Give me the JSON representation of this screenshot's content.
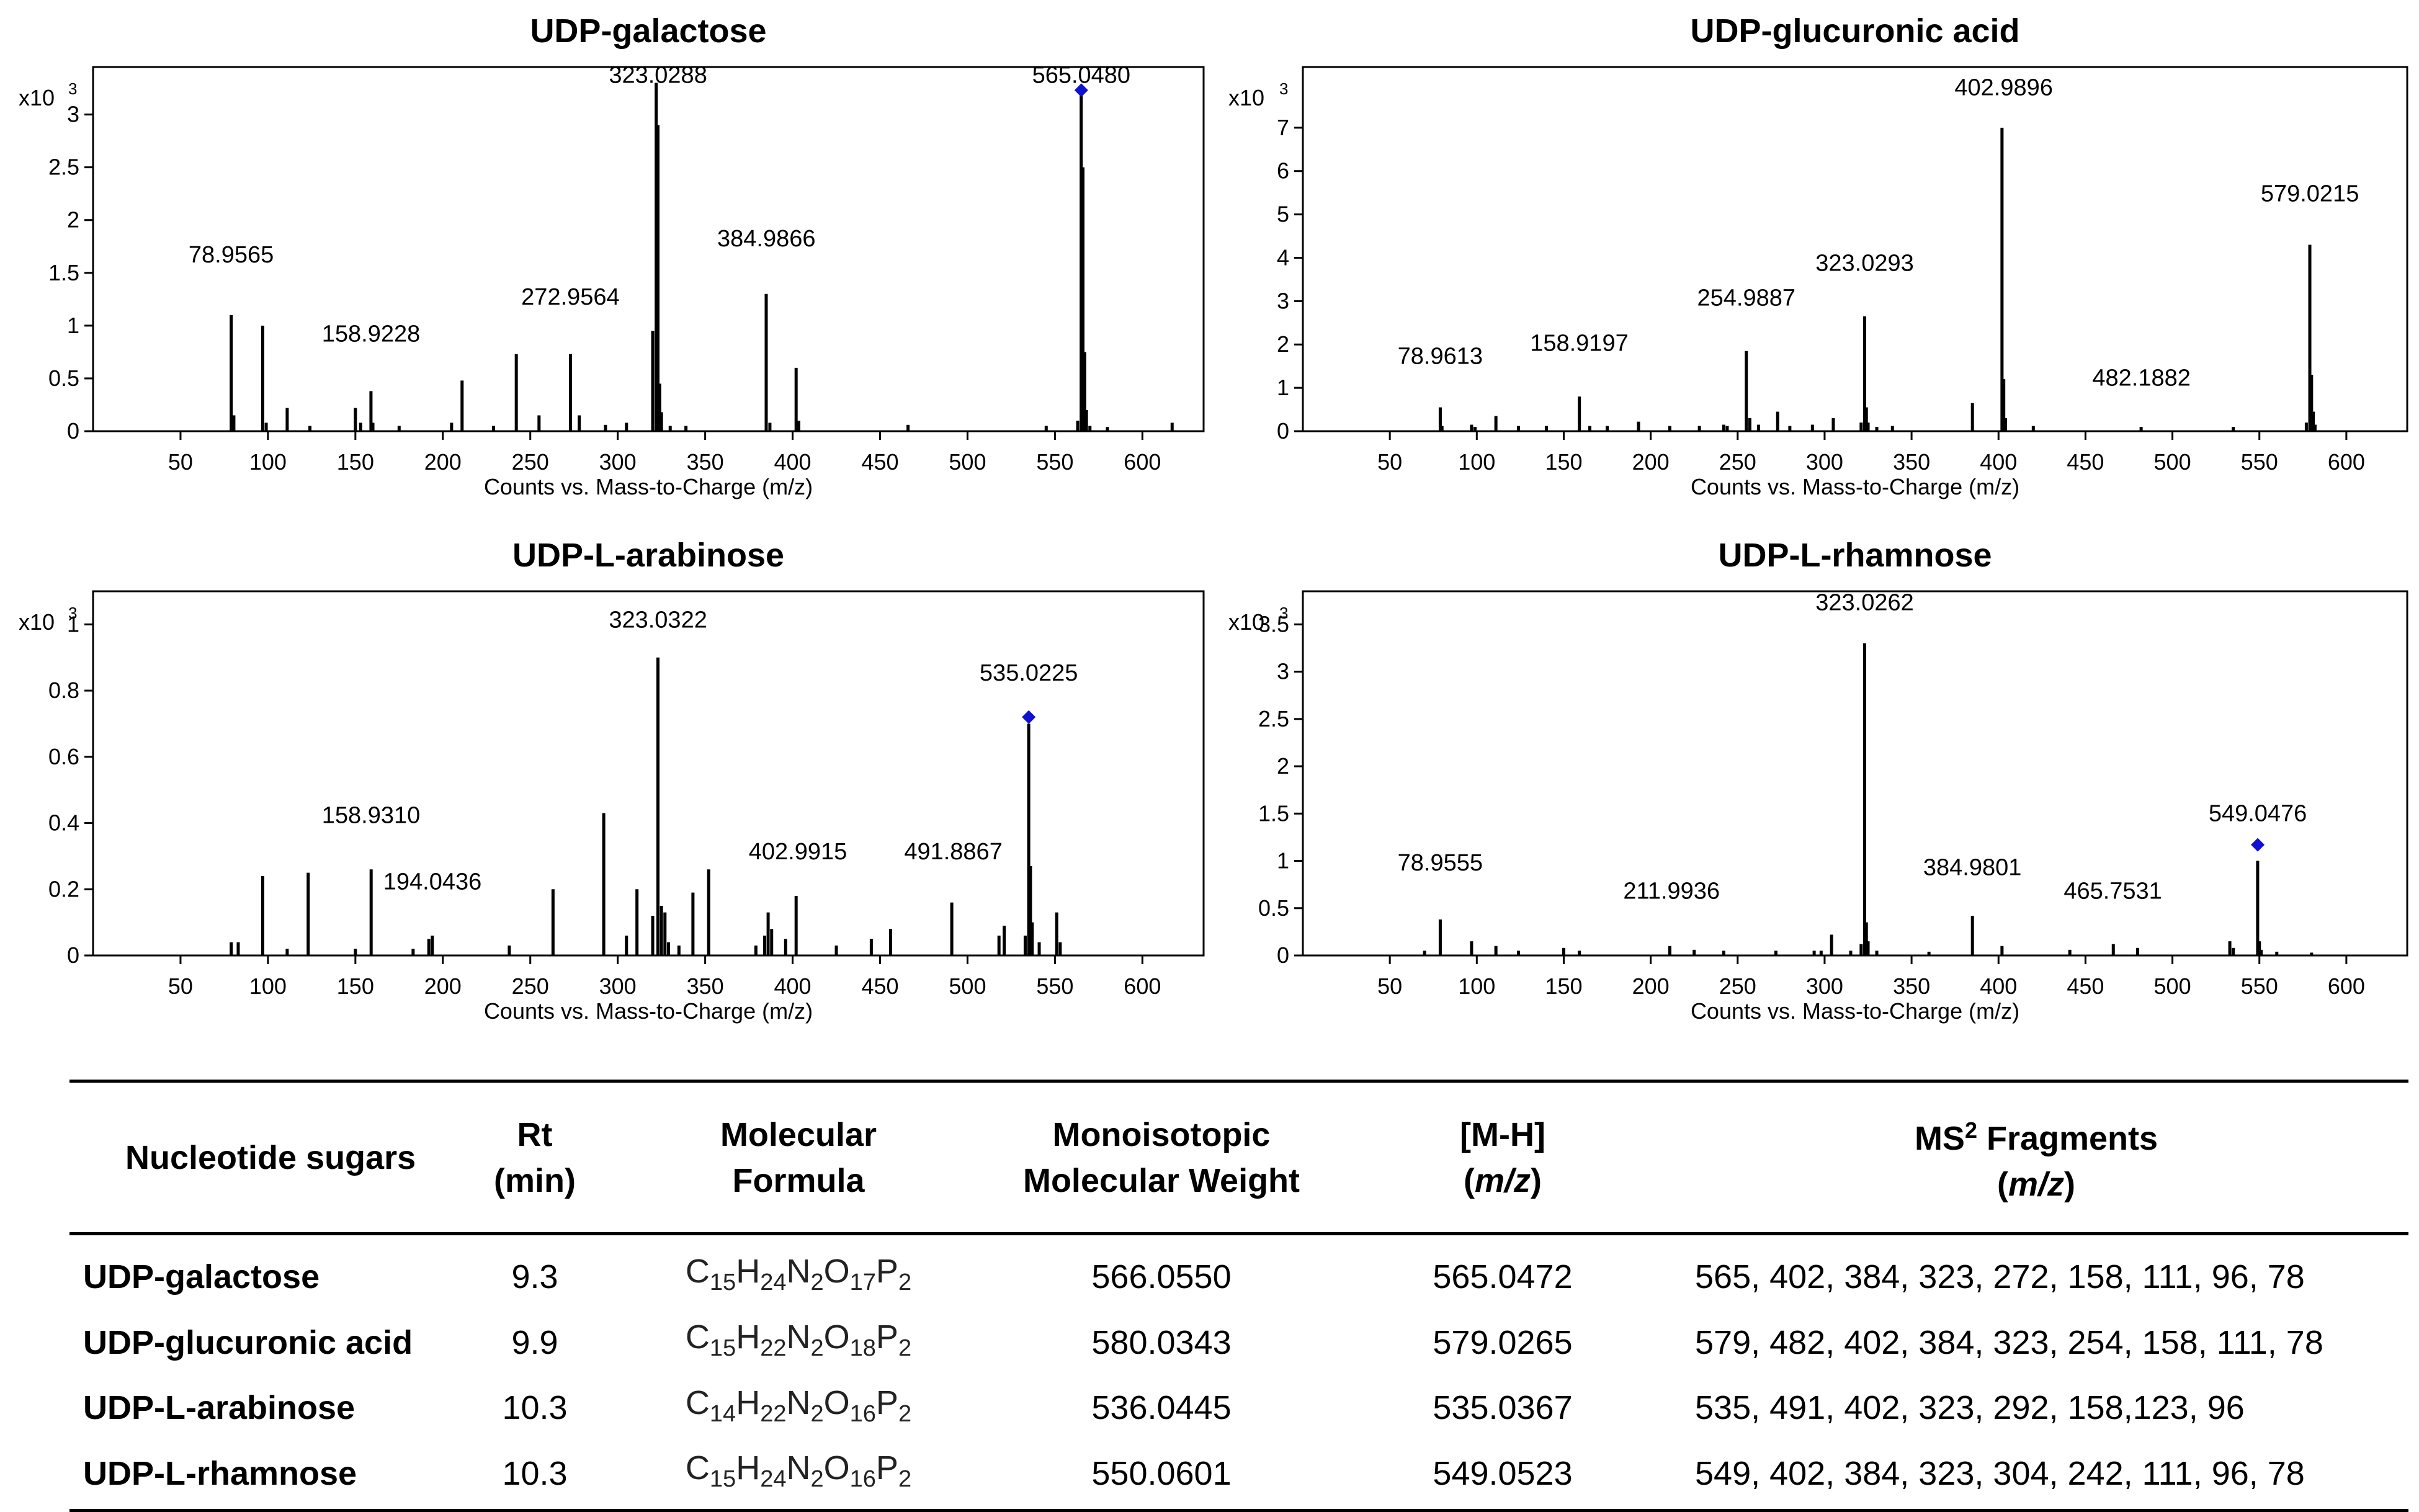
{
  "charts": [
    {
      "type": "bar",
      "title": "UDP-galactose",
      "xlabel": "Counts vs. Mass-to-Charge (m/z)",
      "ylabel_multiplier": "x10",
      "ylabel_exponent": "3",
      "xlim": [
        0,
        635
      ],
      "ylim": [
        0,
        3.45
      ],
      "xticks": [
        50,
        100,
        150,
        200,
        250,
        300,
        350,
        400,
        450,
        500,
        550,
        600
      ],
      "yticks": [
        0,
        0.5,
        1,
        1.5,
        2,
        2.5,
        3
      ],
      "peaks": [
        [
          79.0,
          1.1
        ],
        [
          80.5,
          0.15
        ],
        [
          97.0,
          1.0
        ],
        [
          99.0,
          0.08
        ],
        [
          111.0,
          0.22
        ],
        [
          124.0,
          0.05
        ],
        [
          150.0,
          0.22
        ],
        [
          153.0,
          0.08
        ],
        [
          158.9,
          0.38
        ],
        [
          160.0,
          0.08
        ],
        [
          175.0,
          0.05
        ],
        [
          205.0,
          0.08
        ],
        [
          211.0,
          0.48
        ],
        [
          229.0,
          0.05
        ],
        [
          242.0,
          0.73
        ],
        [
          255.0,
          0.15
        ],
        [
          273.0,
          0.73
        ],
        [
          278.0,
          0.15
        ],
        [
          293.0,
          0.06
        ],
        [
          305.0,
          0.08
        ],
        [
          320.0,
          0.95
        ],
        [
          322.0,
          3.3
        ],
        [
          323.0,
          2.9
        ],
        [
          324.0,
          0.45
        ],
        [
          325.0,
          0.18
        ],
        [
          330.0,
          0.05
        ],
        [
          339.0,
          0.05
        ],
        [
          384.9,
          1.3
        ],
        [
          387.0,
          0.08
        ],
        [
          402.0,
          0.6
        ],
        [
          403.5,
          0.1
        ],
        [
          466.0,
          0.06
        ],
        [
          545.0,
          0.05
        ],
        [
          563.0,
          0.1
        ],
        [
          565.0,
          3.2
        ],
        [
          566.0,
          2.5
        ],
        [
          567.0,
          0.75
        ],
        [
          568.0,
          0.2
        ],
        [
          570.0,
          0.05
        ],
        [
          580.0,
          0.04
        ],
        [
          617.0,
          0.08
        ]
      ],
      "labels": [
        {
          "x": 78.9565,
          "text": "78.9565",
          "y": 1.6
        },
        {
          "x": 158.9228,
          "text": "158.9228",
          "y": 0.85
        },
        {
          "x": 272.9564,
          "text": "272.9564",
          "y": 1.2
        },
        {
          "x": 323.0288,
          "text": "323.0288",
          "y": 3.3
        },
        {
          "x": 384.9866,
          "text": "384.9866",
          "y": 1.75
        },
        {
          "x": 565.048,
          "text": "565.0480",
          "y": 3.3
        }
      ],
      "marker": {
        "x": 565.048,
        "y": 3.23
      }
    },
    {
      "type": "bar",
      "title": "UDP-glucuronic acid",
      "xlabel": "Counts vs. Mass-to-Charge (m/z)",
      "ylabel_multiplier": "x10",
      "ylabel_exponent": "3",
      "xlim": [
        0,
        635
      ],
      "ylim": [
        0,
        8.4
      ],
      "xticks": [
        50,
        100,
        150,
        200,
        250,
        300,
        350,
        400,
        450,
        500,
        550,
        600
      ],
      "yticks": [
        0,
        1,
        2,
        3,
        4,
        5,
        6,
        7
      ],
      "peaks": [
        [
          79.0,
          0.55
        ],
        [
          80.0,
          0.12
        ],
        [
          97.0,
          0.15
        ],
        [
          99.0,
          0.1
        ],
        [
          111.0,
          0.35
        ],
        [
          124.0,
          0.12
        ],
        [
          140.0,
          0.12
        ],
        [
          159.0,
          0.8
        ],
        [
          165.0,
          0.12
        ],
        [
          175.0,
          0.12
        ],
        [
          193.0,
          0.22
        ],
        [
          211.0,
          0.12
        ],
        [
          228.0,
          0.12
        ],
        [
          242.0,
          0.15
        ],
        [
          244.0,
          0.12
        ],
        [
          255.0,
          1.85
        ],
        [
          257.0,
          0.3
        ],
        [
          262.0,
          0.15
        ],
        [
          273.0,
          0.45
        ],
        [
          280.0,
          0.12
        ],
        [
          293.0,
          0.15
        ],
        [
          305.0,
          0.3
        ],
        [
          321.0,
          0.2
        ],
        [
          323.0,
          2.65
        ],
        [
          324.0,
          0.55
        ],
        [
          325.0,
          0.2
        ],
        [
          330.0,
          0.1
        ],
        [
          339.0,
          0.12
        ],
        [
          385.0,
          0.65
        ],
        [
          402.0,
          7.0
        ],
        [
          403.0,
          1.2
        ],
        [
          404.0,
          0.3
        ],
        [
          420.0,
          0.12
        ],
        [
          482.0,
          0.1
        ],
        [
          535.0,
          0.1
        ],
        [
          577.0,
          0.2
        ],
        [
          579.0,
          4.3
        ],
        [
          580.0,
          1.3
        ],
        [
          581.0,
          0.45
        ],
        [
          582.0,
          0.15
        ]
      ],
      "labels": [
        {
          "x": 78.9613,
          "text": "78.9613",
          "y": 1.55
        },
        {
          "x": 158.9197,
          "text": "158.9197",
          "y": 1.85
        },
        {
          "x": 254.9887,
          "text": "254.9887",
          "y": 2.9
        },
        {
          "x": 323.0293,
          "text": "323.0293",
          "y": 3.7
        },
        {
          "x": 402.9896,
          "text": "402.9896",
          "y": 7.75
        },
        {
          "x": 482.1882,
          "text": "482.1882",
          "y": 1.05
        },
        {
          "x": 579.0215,
          "text": "579.0215",
          "y": 5.3
        }
      ],
      "marker": null
    },
    {
      "type": "bar",
      "title": "UDP-L-arabinose",
      "xlabel": "Counts vs. Mass-to-Charge (m/z)",
      "ylabel_multiplier": "x10",
      "ylabel_exponent": "3",
      "xlim": [
        0,
        635
      ],
      "ylim": [
        0,
        1.1
      ],
      "xticks": [
        50,
        100,
        150,
        200,
        250,
        300,
        350,
        400,
        450,
        500,
        550,
        600
      ],
      "yticks": [
        0,
        0.2,
        0.4,
        0.6,
        0.8,
        1
      ],
      "peaks": [
        [
          79.0,
          0.04
        ],
        [
          83.0,
          0.04
        ],
        [
          97.0,
          0.24
        ],
        [
          111.0,
          0.02
        ],
        [
          123.0,
          0.25
        ],
        [
          150.0,
          0.02
        ],
        [
          159.0,
          0.26
        ],
        [
          183.0,
          0.02
        ],
        [
          192.0,
          0.05
        ],
        [
          194.0,
          0.06
        ],
        [
          238.0,
          0.03
        ],
        [
          263.0,
          0.2
        ],
        [
          292.0,
          0.43
        ],
        [
          305.0,
          0.06
        ],
        [
          311.0,
          0.2
        ],
        [
          320.0,
          0.12
        ],
        [
          323.0,
          0.9
        ],
        [
          325.0,
          0.15
        ],
        [
          327.0,
          0.13
        ],
        [
          329.0,
          0.04
        ],
        [
          335.0,
          0.03
        ],
        [
          343.0,
          0.19
        ],
        [
          352.0,
          0.26
        ],
        [
          379.0,
          0.03
        ],
        [
          384.0,
          0.06
        ],
        [
          386.0,
          0.13
        ],
        [
          388.0,
          0.08
        ],
        [
          396.0,
          0.05
        ],
        [
          402.0,
          0.18
        ],
        [
          425.0,
          0.03
        ],
        [
          445.0,
          0.05
        ],
        [
          456.0,
          0.08
        ],
        [
          491.0,
          0.16
        ],
        [
          518.0,
          0.06
        ],
        [
          521.0,
          0.09
        ],
        [
          533.0,
          0.06
        ],
        [
          535.0,
          0.7
        ],
        [
          536.0,
          0.27
        ],
        [
          537.0,
          0.1
        ],
        [
          541.0,
          0.04
        ],
        [
          551.0,
          0.13
        ],
        [
          553.0,
          0.04
        ]
      ],
      "labels": [
        {
          "x": 158.931,
          "text": "158.9310",
          "y": 0.4
        },
        {
          "x": 194.0436,
          "text": "194.0436",
          "y": 0.2
        },
        {
          "x": 323.0322,
          "text": "323.0322",
          "y": 0.99
        },
        {
          "x": 402.9915,
          "text": "402.9915",
          "y": 0.29
        },
        {
          "x": 491.8867,
          "text": "491.8867",
          "y": 0.29
        },
        {
          "x": 535.0225,
          "text": "535.0225",
          "y": 0.83
        }
      ],
      "marker": {
        "x": 535.0225,
        "y": 0.72
      }
    },
    {
      "type": "bar",
      "title": "UDP-L-rhamnose",
      "xlabel": "Counts vs. Mass-to-Charge (m/z)",
      "ylabel_multiplier": "x10",
      "ylabel_exponent": "3",
      "xlim": [
        0,
        635
      ],
      "ylim": [
        0,
        3.85
      ],
      "xticks": [
        50,
        100,
        150,
        200,
        250,
        300,
        350,
        400,
        450,
        500,
        550,
        600
      ],
      "yticks": [
        0,
        0.5,
        1,
        1.5,
        2,
        2.5,
        3,
        3.5
      ],
      "peaks": [
        [
          70.0,
          0.05
        ],
        [
          79.0,
          0.38
        ],
        [
          97.0,
          0.15
        ],
        [
          111.0,
          0.1
        ],
        [
          124.0,
          0.05
        ],
        [
          150.0,
          0.08
        ],
        [
          159.0,
          0.05
        ],
        [
          211.0,
          0.1
        ],
        [
          225.0,
          0.06
        ],
        [
          242.0,
          0.05
        ],
        [
          272.0,
          0.05
        ],
        [
          294.0,
          0.05
        ],
        [
          298.0,
          0.05
        ],
        [
          304.0,
          0.22
        ],
        [
          315.0,
          0.05
        ],
        [
          321.0,
          0.12
        ],
        [
          323.0,
          3.3
        ],
        [
          324.0,
          0.35
        ],
        [
          325.0,
          0.15
        ],
        [
          330.0,
          0.05
        ],
        [
          360.0,
          0.04
        ],
        [
          385.0,
          0.42
        ],
        [
          402.0,
          0.1
        ],
        [
          441.0,
          0.06
        ],
        [
          466.0,
          0.12
        ],
        [
          480.0,
          0.08
        ],
        [
          533.0,
          0.15
        ],
        [
          535.0,
          0.08
        ],
        [
          549.0,
          1.0
        ],
        [
          550.0,
          0.15
        ],
        [
          551.0,
          0.06
        ],
        [
          560.0,
          0.04
        ],
        [
          580.0,
          0.03
        ]
      ],
      "labels": [
        {
          "x": 78.9555,
          "text": "78.9555",
          "y": 0.9
        },
        {
          "x": 211.9936,
          "text": "211.9936",
          "y": 0.6
        },
        {
          "x": 323.0262,
          "text": "323.0262",
          "y": 3.65
        },
        {
          "x": 384.9801,
          "text": "384.9801",
          "y": 0.85
        },
        {
          "x": 465.7531,
          "text": "465.7531",
          "y": 0.6
        },
        {
          "x": 549.0476,
          "text": "549.0476",
          "y": 1.42
        }
      ],
      "marker": {
        "x": 549.0476,
        "y": 1.17
      }
    }
  ],
  "table": {
    "headers": {
      "name": "Nucleotide sugars",
      "rt_line1": "Rt",
      "rt_line2": "(min)",
      "formula_line1": "Molecular",
      "formula_line2": "Formula",
      "mw_line1": "Monoisotopic",
      "mw_line2": "Molecular Weight",
      "mh_line1": "[M-H]",
      "mh_line2": "m/z",
      "frag_line1_main": "MS",
      "frag_line1_sup": "2",
      "frag_line1_rest": " Fragments",
      "frag_line2": "m/z"
    },
    "rows": [
      {
        "name": "UDP-galactose",
        "rt": "9.3",
        "formula": [
          {
            "e": "C",
            "n": "15"
          },
          {
            "e": "H",
            "n": "24"
          },
          {
            "e": "N",
            "n": "2"
          },
          {
            "e": "O",
            "n": "17"
          },
          {
            "e": "P",
            "n": "2"
          }
        ],
        "mw": "566.0550",
        "mh": "565.0472",
        "fragments": "565, 402, 384, 323, 272, 158, 111, 96, 78"
      },
      {
        "name": "UDP-glucuronic acid",
        "rt": "9.9",
        "formula": [
          {
            "e": "C",
            "n": "15"
          },
          {
            "e": "H",
            "n": "22"
          },
          {
            "e": "N",
            "n": "2"
          },
          {
            "e": "O",
            "n": "18"
          },
          {
            "e": "P",
            "n": "2"
          }
        ],
        "mw": "580.0343",
        "mh": "579.0265",
        "fragments": "579, 482, 402, 384, 323, 254, 158, 111, 78"
      },
      {
        "name": "UDP-L-arabinose",
        "rt": "10.3",
        "formula": [
          {
            "e": "C",
            "n": "14"
          },
          {
            "e": "H",
            "n": "22"
          },
          {
            "e": "N",
            "n": "2"
          },
          {
            "e": "O",
            "n": "16"
          },
          {
            "e": "P",
            "n": "2"
          }
        ],
        "mw": "536.0445",
        "mh": "535.0367",
        "fragments": "535, 491, 402, 323, 292, 158,123, 96"
      },
      {
        "name": "UDP-L-rhamnose",
        "rt": "10.3",
        "formula": [
          {
            "e": "C",
            "n": "15"
          },
          {
            "e": "H",
            "n": "24"
          },
          {
            "e": "N",
            "n": "2"
          },
          {
            "e": "O",
            "n": "16"
          },
          {
            "e": "P",
            "n": "2"
          }
        ],
        "mw": "550.0601",
        "mh": "549.0523",
        "fragments": "549, 402, 384, 323, 304, 242, 111, 96, 78"
      }
    ]
  }
}
